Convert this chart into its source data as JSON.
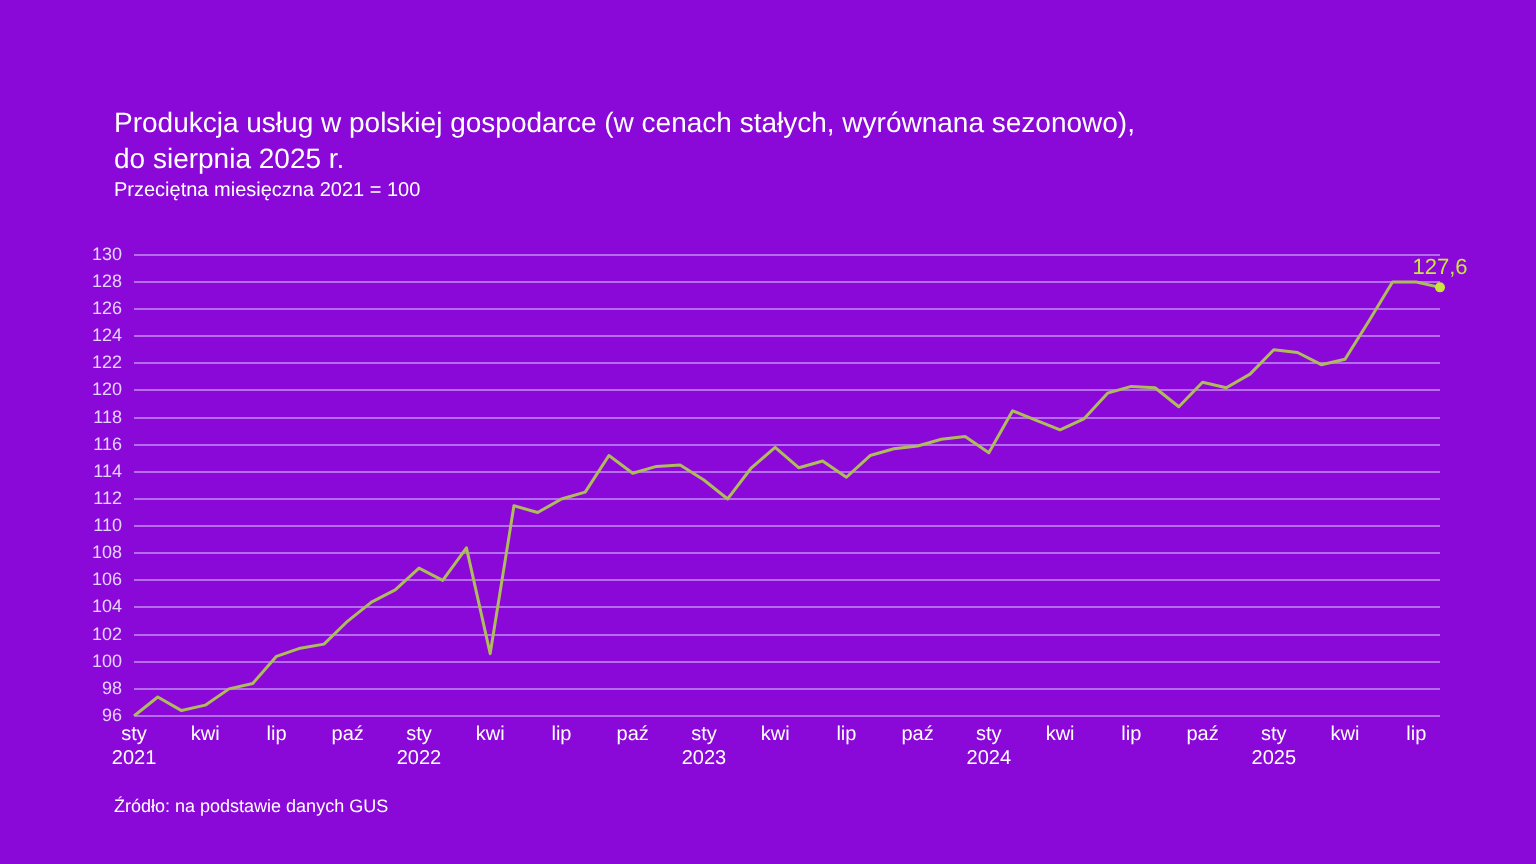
{
  "chart_data": {
    "type": "line",
    "title": "Produkcja usług w polskiej gospodarce (w cenach stałych, wyrównana sezonowo),\ndo sierpnia 2025 r.",
    "subtitle": "Przeciętna miesięczna 2021 = 100",
    "annotations": [
      "Źródło: na podstawie danych GUS"
    ],
    "categories": [
      "sty\n2021",
      null,
      null,
      "kwi",
      null,
      null,
      "lip",
      null,
      null,
      "paź",
      null,
      null,
      "sty\n2022",
      null,
      null,
      "kwi",
      null,
      null,
      "lip",
      null,
      null,
      "paź",
      null,
      null,
      "sty\n2023",
      null,
      null,
      "kwi",
      null,
      null,
      "lip",
      null,
      null,
      "paź",
      null,
      null,
      "sty\n2024",
      null,
      null,
      "kwi",
      null,
      null,
      "lip",
      null,
      null,
      "paź",
      null,
      null,
      "sty\n2025",
      null,
      null,
      "kwi",
      null,
      null,
      "lip",
      null
    ],
    "series": [
      {
        "color": "#aebc5c",
        "values": [
          96.0,
          97.4,
          96.4,
          96.8,
          98.0,
          98.4,
          100.4,
          101.0,
          101.3,
          103.0,
          104.4,
          105.3,
          106.9,
          106.0,
          108.4,
          100.6,
          111.5,
          111.0,
          112.0,
          112.5,
          115.2,
          113.9,
          114.4,
          114.5,
          113.4,
          112.0,
          114.3,
          115.8,
          114.3,
          114.8,
          113.6,
          115.2,
          115.7,
          115.9,
          116.4,
          116.6,
          115.4,
          118.5,
          117.8,
          117.1,
          117.9,
          119.8,
          120.3,
          120.2,
          118.8,
          120.6,
          120.2,
          121.2,
          123.0,
          122.8,
          121.9,
          122.3,
          125.1,
          128.0,
          128.0,
          127.6
        ],
        "value_labels": [
          null,
          null,
          null,
          null,
          null,
          null,
          null,
          null,
          null,
          null,
          null,
          null,
          null,
          null,
          null,
          null,
          null,
          null,
          null,
          null,
          null,
          null,
          null,
          null,
          null,
          null,
          null,
          null,
          null,
          null,
          null,
          null,
          null,
          null,
          null,
          null,
          null,
          null,
          null,
          null,
          null,
          null,
          null,
          null,
          null,
          null,
          null,
          null,
          null,
          null,
          null,
          null,
          null,
          null,
          null,
          "127,6"
        ]
      }
    ],
    "ylim": [
      96,
      130
    ],
    "yticks": [
      96,
      98,
      100,
      102,
      104,
      106,
      108,
      110,
      112,
      114,
      116,
      118,
      120,
      122,
      124,
      126,
      128,
      130
    ],
    "grid": "y",
    "legend": false
  }
}
